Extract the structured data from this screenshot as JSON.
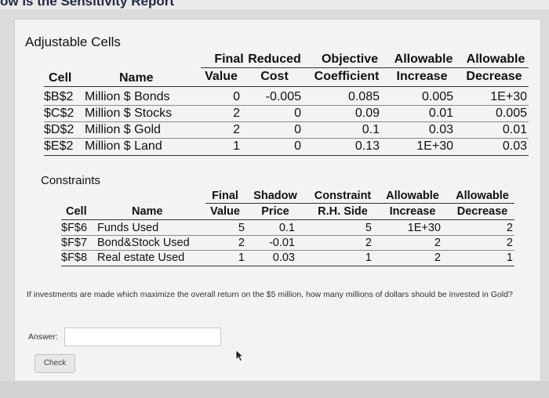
{
  "page": {
    "header_title": "ow is the Sensitivity Report"
  },
  "adjustable": {
    "title": "Adjustable Cells",
    "headers": {
      "cell": "Cell",
      "name": "Name",
      "final_1": "Final",
      "final_2": "Value",
      "reduced_1": "Reduced",
      "reduced_2": "Cost",
      "objective_1": "Objective",
      "objective_2": "Coefficient",
      "inc_1": "Allowable",
      "inc_2": "Increase",
      "dec_1": "Allowable",
      "dec_2": "Decrease"
    },
    "rows": [
      {
        "cell": "$B$2",
        "name": "Million $ Bonds",
        "final": "0",
        "reduced": "-0.005",
        "objective": "0.085",
        "increase": "0.005",
        "decrease": "1E+30"
      },
      {
        "cell": "$C$2",
        "name": "Million $ Stocks",
        "final": "2",
        "reduced": "0",
        "objective": "0.09",
        "increase": "0.01",
        "decrease": "0.005"
      },
      {
        "cell": "$D$2",
        "name": "Million $ Gold",
        "final": "2",
        "reduced": "0",
        "objective": "0.1",
        "increase": "0.03",
        "decrease": "0.01"
      },
      {
        "cell": "$E$2",
        "name": "Million $ Land",
        "final": "1",
        "reduced": "0",
        "objective": "0.13",
        "increase": "1E+30",
        "decrease": "0.03"
      }
    ]
  },
  "constraints": {
    "title": "Constraints",
    "headers": {
      "cell": "Cell",
      "name": "Name",
      "final_1": "Final",
      "final_2": "Value",
      "shadow_1": "Shadow",
      "shadow_2": "Price",
      "rhs_1": "Constraint",
      "rhs_2": "R.H. Side",
      "inc_1": "Allowable",
      "inc_2": "Increase",
      "dec_1": "Allowable",
      "dec_2": "Decrease"
    },
    "rows": [
      {
        "cell": "$F$6",
        "name": "Funds Used",
        "final": "5",
        "shadow": "0.1",
        "rhs": "5",
        "increase": "1E+30",
        "decrease": "2"
      },
      {
        "cell": "$F$7",
        "name": "Bond&Stock Used",
        "final": "2",
        "shadow": "-0.01",
        "rhs": "2",
        "increase": "2",
        "decrease": "2"
      },
      {
        "cell": "$F$8",
        "name": "Real estate Used",
        "final": "1",
        "shadow": "0.03",
        "rhs": "1",
        "increase": "2",
        "decrease": "1"
      }
    ]
  },
  "question": {
    "text": "If investments are made which maximize the overall return on the $5 million, how many millions of dollars should be invested in Gold?",
    "answer_label": "Answer:",
    "answer_value": "",
    "check_label": "Check"
  }
}
